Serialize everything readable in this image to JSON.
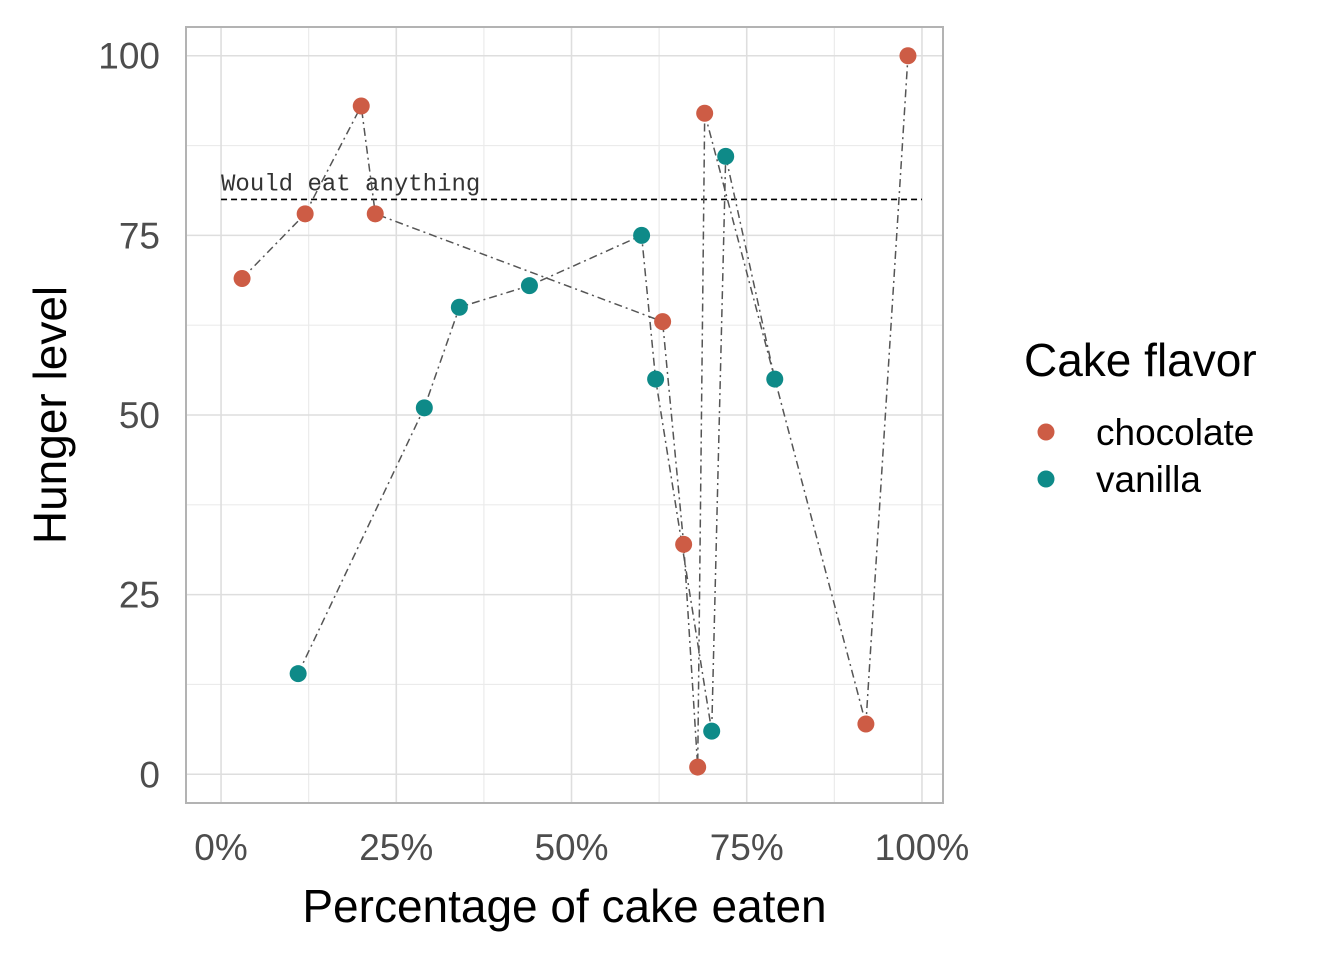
{
  "chart_data": {
    "type": "scatter",
    "xlabel": "Percentage of cake eaten",
    "ylabel": "Hunger level",
    "xlim": [
      -0.05,
      1.03
    ],
    "ylim": [
      -4,
      104
    ],
    "x_ticks": [
      0,
      0.25,
      0.5,
      0.75,
      1.0
    ],
    "x_tick_labels": [
      "0%",
      "25%",
      "50%",
      "75%",
      "100%"
    ],
    "y_ticks": [
      0,
      25,
      50,
      75,
      100
    ],
    "y_tick_labels": [
      "0",
      "25",
      "50",
      "75",
      "100"
    ],
    "grid": true,
    "legend": {
      "title": "Cake flavor",
      "position": "right",
      "entries": [
        "chocolate",
        "vanilla"
      ]
    },
    "reference_line": {
      "y": 80,
      "label": "Would eat anything",
      "style": "dashed"
    },
    "series": [
      {
        "name": "chocolate",
        "color": "#cd5c45",
        "points": [
          {
            "x": 0.03,
            "y": 69
          },
          {
            "x": 0.12,
            "y": 78
          },
          {
            "x": 0.2,
            "y": 93
          },
          {
            "x": 0.22,
            "y": 78
          },
          {
            "x": 0.63,
            "y": 63
          },
          {
            "x": 0.66,
            "y": 32
          },
          {
            "x": 0.68,
            "y": 1
          },
          {
            "x": 0.69,
            "y": 92
          },
          {
            "x": 0.92,
            "y": 7
          },
          {
            "x": 0.98,
            "y": 100
          }
        ]
      },
      {
        "name": "vanilla",
        "color": "#0e8a88",
        "points": [
          {
            "x": 0.11,
            "y": 14
          },
          {
            "x": 0.29,
            "y": 51
          },
          {
            "x": 0.34,
            "y": 65
          },
          {
            "x": 0.44,
            "y": 68
          },
          {
            "x": 0.6,
            "y": 75
          },
          {
            "x": 0.62,
            "y": 55
          },
          {
            "x": 0.7,
            "y": 6
          },
          {
            "x": 0.72,
            "y": 86
          },
          {
            "x": 0.79,
            "y": 55
          }
        ]
      }
    ]
  }
}
